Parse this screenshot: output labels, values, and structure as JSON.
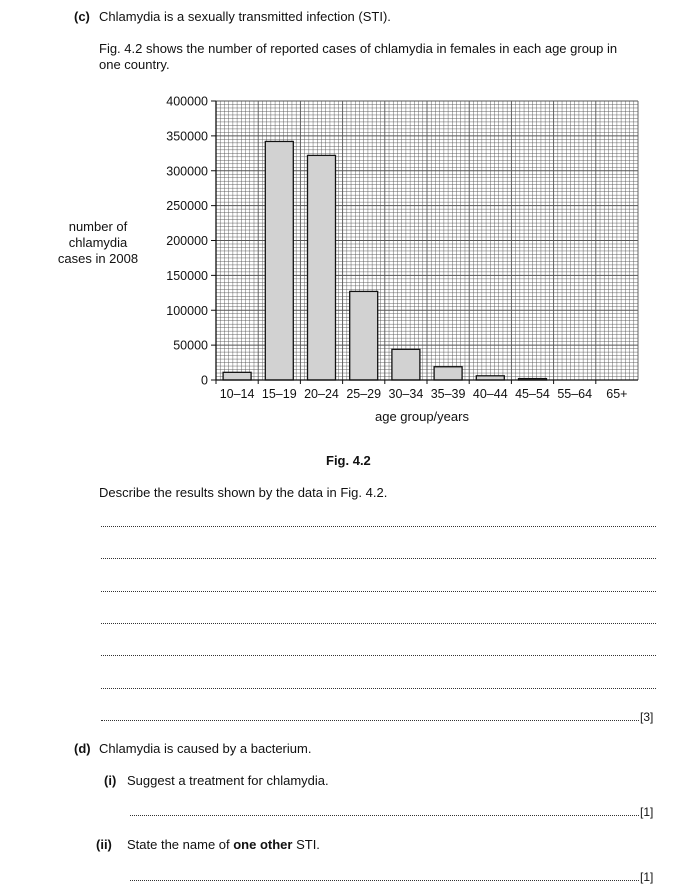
{
  "part_c": {
    "label": "(c)",
    "intro": "Chlamydia is a sexually transmitted infection (STI).",
    "fig_desc_line1": "Fig. 4.2 shows the number of reported cases of chlamydia in females in each age group in",
    "fig_desc_line2": "one country.",
    "fig_caption": "Fig. 4.2",
    "question": "Describe the results shown by the data in Fig. 4.2.",
    "marks": "[3]"
  },
  "chart_data": {
    "type": "bar",
    "ylabel": [
      "number of",
      "chlamydia",
      "cases in 2008"
    ],
    "xlabel": "age group/years",
    "categories": [
      "10–14",
      "15–19",
      "20–24",
      "25–29",
      "30–34",
      "35–39",
      "40–44",
      "45–54",
      "55–64",
      "65+"
    ],
    "values": [
      11000,
      342000,
      322000,
      127000,
      44000,
      19000,
      6000,
      2000,
      0,
      0
    ],
    "yticks": [
      "0",
      "50000",
      "100000",
      "150000",
      "200000",
      "250000",
      "300000",
      "350000",
      "400000"
    ],
    "ylim": [
      0,
      400000
    ],
    "grid": true,
    "bar_color": "#d2d2d2"
  },
  "part_d": {
    "label": "(d)",
    "intro": "Chlamydia is caused by a bacterium.",
    "i_label": "(i)",
    "i_text": "Suggest a treatment for chlamydia.",
    "i_marks": "[1]",
    "ii_label": "(ii)",
    "ii_text_before": "State the name of ",
    "ii_text_bold": "one other",
    "ii_text_after": " STI.",
    "ii_marks": "[1]"
  }
}
